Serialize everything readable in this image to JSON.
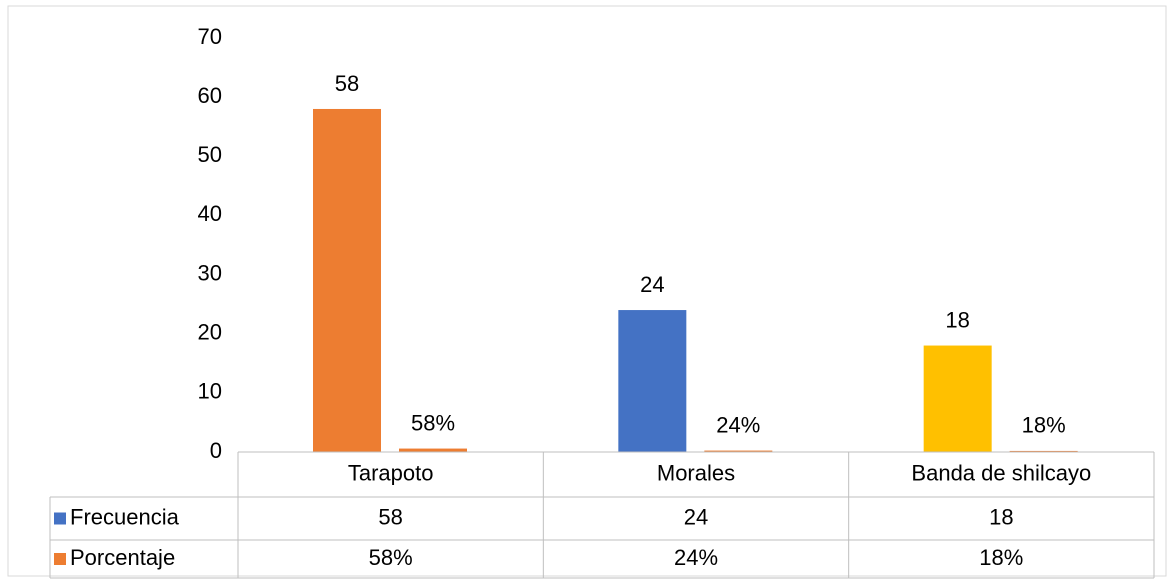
{
  "chart_data": {
    "type": "bar",
    "categories": [
      "Tarapoto",
      "Morales",
      "Banda de shilcayo"
    ],
    "series": [
      {
        "name": "Frecuencia",
        "color": "#4472c4",
        "point_colors": [
          "#ed7d31",
          "#4472c4",
          "#ffc000"
        ],
        "values": [
          58,
          24,
          18
        ]
      },
      {
        "name": "Porcentaje",
        "color": "#ed7d31",
        "values": [
          0.58,
          0.24,
          0.18
        ],
        "value_labels": [
          "58%",
          "24%",
          "18%"
        ]
      }
    ],
    "ylim": [
      0,
      70
    ],
    "yticks": [
      0,
      10,
      20,
      30,
      40,
      50,
      60,
      70
    ],
    "grid": false,
    "data_table": true
  }
}
